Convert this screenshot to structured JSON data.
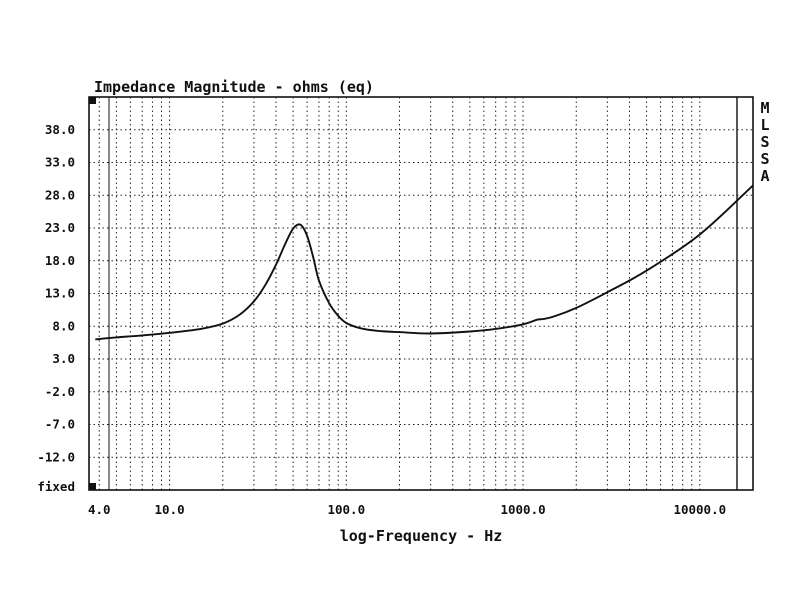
{
  "chart_data": {
    "type": "line",
    "title": "Impedance Magnitude - ohms (eq)",
    "xlabel": "log-Frequency - Hz",
    "ylabel": "",
    "xscale": "log",
    "xlim": [
      3.5,
      20000
    ],
    "ylim": [
      -17,
      43
    ],
    "x_ticks": [
      4,
      10,
      100,
      1000,
      10000
    ],
    "x_tick_labels": [
      "4.0",
      "10.0",
      "100.0",
      "1000.0",
      "10000.0"
    ],
    "y_ticks": [
      38,
      33,
      28,
      23,
      18,
      13,
      8,
      3,
      -2,
      -7,
      -12
    ],
    "y_tick_labels": [
      "38.0",
      "33.0",
      "28.0",
      "23.0",
      "18.0",
      "13.0",
      "8.0",
      "3.0",
      "-2.0",
      "-7.0",
      "-12.0"
    ],
    "bottom_label": "fixed",
    "side_label": [
      "M",
      "L",
      "S",
      "S",
      "A"
    ],
    "grid": true,
    "series": [
      {
        "name": "Impedance Magnitude",
        "x": [
          3.8,
          5,
          7,
          10,
          15,
          20,
          25,
          30,
          35,
          40,
          45,
          50,
          55,
          60,
          65,
          70,
          80,
          90,
          100,
          120,
          150,
          200,
          300,
          500,
          700,
          1000,
          1200,
          1300,
          1500,
          2000,
          3000,
          5000,
          10000,
          20000
        ],
        "y": [
          6.0,
          6.3,
          6.6,
          7.0,
          7.6,
          8.4,
          9.8,
          11.8,
          14.4,
          17.4,
          20.5,
          22.9,
          23.5,
          21.8,
          18.5,
          15.0,
          11.5,
          9.6,
          8.5,
          7.7,
          7.3,
          7.1,
          6.9,
          7.2,
          7.6,
          8.3,
          9.0,
          9.1,
          9.5,
          10.8,
          13.2,
          16.5,
          22.0,
          29.5
        ]
      }
    ]
  }
}
